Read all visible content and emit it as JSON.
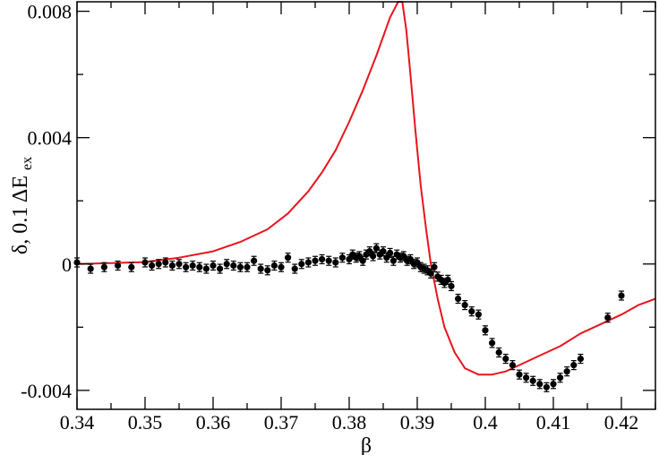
{
  "chart_data": {
    "type": "scatter",
    "xlabel": "β",
    "ylabel_main": "δ, 0.1 ΔE",
    "ylabel_sub": "ex",
    "xlim": [
      0.34,
      0.425
    ],
    "ylim": [
      -0.0046,
      0.0083
    ],
    "x_ticks": [
      0.34,
      0.35,
      0.36,
      0.37,
      0.38,
      0.39,
      0.4,
      0.41,
      0.42
    ],
    "x_tick_labels": [
      "0.34",
      "0.35",
      "0.36",
      "0.37",
      "0.38",
      "0.39",
      "0.4",
      "0.41",
      "0.42"
    ],
    "y_ticks": [
      -0.004,
      0,
      0.004,
      0.008
    ],
    "y_tick_labels": [
      "-0.004",
      "0",
      "0.004",
      "0.008"
    ],
    "grid": false,
    "series": [
      {
        "kind": "line",
        "color": "#e8141c",
        "points": [
          [
            0.34,
            0.0
          ],
          [
            0.345,
            3e-05
          ],
          [
            0.35,
            6e-05
          ],
          [
            0.355,
            0.0002
          ],
          [
            0.36,
            0.0004
          ],
          [
            0.364,
            0.0007
          ],
          [
            0.368,
            0.0011
          ],
          [
            0.371,
            0.0016
          ],
          [
            0.374,
            0.0023
          ],
          [
            0.376,
            0.0029
          ],
          [
            0.378,
            0.0036
          ],
          [
            0.38,
            0.0045
          ],
          [
            0.382,
            0.0055
          ],
          [
            0.384,
            0.0066
          ],
          [
            0.386,
            0.0078
          ],
          [
            0.3872,
            0.0083
          ],
          [
            0.3878,
            0.0083
          ],
          [
            0.3884,
            0.0074
          ],
          [
            0.389,
            0.006
          ],
          [
            0.3897,
            0.0043
          ],
          [
            0.3905,
            0.0025
          ],
          [
            0.3913,
            0.0011
          ],
          [
            0.392,
            0.0
          ],
          [
            0.393,
            -0.0011
          ],
          [
            0.394,
            -0.002
          ],
          [
            0.3955,
            -0.0028
          ],
          [
            0.397,
            -0.0033
          ],
          [
            0.399,
            -0.0035
          ],
          [
            0.401,
            -0.0035
          ],
          [
            0.403,
            -0.0034
          ],
          [
            0.405,
            -0.0032
          ],
          [
            0.408,
            -0.0029
          ],
          [
            0.411,
            -0.0026
          ],
          [
            0.414,
            -0.0022
          ],
          [
            0.417,
            -0.0019
          ],
          [
            0.42,
            -0.0016
          ],
          [
            0.4225,
            -0.0013
          ],
          [
            0.425,
            -0.0011
          ]
        ]
      },
      {
        "kind": "points",
        "color": "#000000",
        "marker": "circle",
        "points": [
          [
            0.34,
            5e-05
          ],
          [
            0.342,
            -0.00015
          ],
          [
            0.344,
            -0.0001
          ],
          [
            0.346,
            -5e-05
          ],
          [
            0.348,
            -0.0001
          ],
          [
            0.35,
            5e-05
          ],
          [
            0.351,
            -5e-05
          ],
          [
            0.352,
            0.0
          ],
          [
            0.353,
            5e-05
          ],
          [
            0.354,
            -5e-05
          ],
          [
            0.355,
            0.0
          ],
          [
            0.356,
            -0.0001
          ],
          [
            0.357,
            -5e-05
          ],
          [
            0.358,
            -0.0001
          ],
          [
            0.359,
            -0.00015
          ],
          [
            0.36,
            -5e-05
          ],
          [
            0.361,
            -0.00015
          ],
          [
            0.362,
            0.0
          ],
          [
            0.363,
            -5e-05
          ],
          [
            0.364,
            -0.0001
          ],
          [
            0.365,
            -0.0001
          ],
          [
            0.366,
            0.0001
          ],
          [
            0.367,
            -0.00015
          ],
          [
            0.368,
            -0.0002
          ],
          [
            0.369,
            -5e-05
          ],
          [
            0.37,
            -0.0001
          ],
          [
            0.371,
            0.0002
          ],
          [
            0.372,
            -0.00015
          ],
          [
            0.373,
            0.0
          ],
          [
            0.374,
            5e-05
          ],
          [
            0.375,
            0.0001
          ],
          [
            0.376,
            0.00015
          ],
          [
            0.377,
            0.0001
          ],
          [
            0.378,
            5e-05
          ],
          [
            0.379,
            0.0002
          ],
          [
            0.38,
            0.00015
          ],
          [
            0.3805,
            0.0003
          ],
          [
            0.381,
            0.0002
          ],
          [
            0.3815,
            0.00025
          ],
          [
            0.382,
            0.0001
          ],
          [
            0.3825,
            0.0003
          ],
          [
            0.383,
            0.0004
          ],
          [
            0.3835,
            0.00025
          ],
          [
            0.384,
            0.0005
          ],
          [
            0.3845,
            0.0003
          ],
          [
            0.385,
            0.0004
          ],
          [
            0.3855,
            0.0002
          ],
          [
            0.386,
            0.00035
          ],
          [
            0.3865,
            0.0001
          ],
          [
            0.387,
            0.0003
          ],
          [
            0.3875,
            0.0002
          ],
          [
            0.388,
            0.00025
          ],
          [
            0.3885,
            0.0001
          ],
          [
            0.389,
            0.00015
          ],
          [
            0.3895,
            0.0
          ],
          [
            0.39,
            5e-05
          ],
          [
            0.3905,
            -0.0001
          ],
          [
            0.391,
            -0.00015
          ],
          [
            0.3915,
            -0.0002
          ],
          [
            0.392,
            -0.0003
          ],
          [
            0.3925,
            -0.0001
          ],
          [
            0.393,
            -0.0004
          ],
          [
            0.3935,
            -0.0005
          ],
          [
            0.394,
            -0.0006
          ],
          [
            0.3945,
            -0.0005
          ],
          [
            0.395,
            -0.0007
          ],
          [
            0.396,
            -0.0011
          ],
          [
            0.397,
            -0.0013
          ],
          [
            0.398,
            -0.0015
          ],
          [
            0.399,
            -0.0016
          ],
          [
            0.4,
            -0.0021
          ],
          [
            0.401,
            -0.0025
          ],
          [
            0.402,
            -0.0028
          ],
          [
            0.403,
            -0.003
          ],
          [
            0.404,
            -0.0032
          ],
          [
            0.405,
            -0.0035
          ],
          [
            0.406,
            -0.0036
          ],
          [
            0.407,
            -0.0037
          ],
          [
            0.408,
            -0.0038
          ],
          [
            0.409,
            -0.0039
          ],
          [
            0.41,
            -0.0038
          ],
          [
            0.411,
            -0.0036
          ],
          [
            0.412,
            -0.0034
          ],
          [
            0.413,
            -0.0032
          ],
          [
            0.414,
            -0.003
          ],
          [
            0.418,
            -0.0017
          ],
          [
            0.42,
            -0.001
          ]
        ]
      }
    ]
  }
}
